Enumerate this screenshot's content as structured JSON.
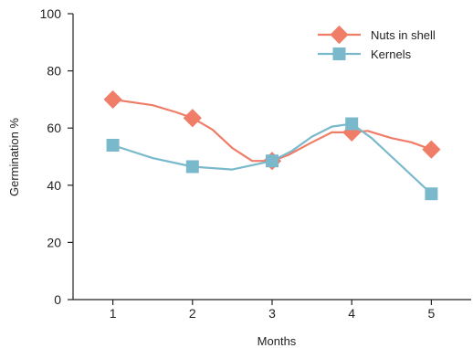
{
  "chart_data": {
    "type": "line",
    "title": "",
    "xlabel": "Months",
    "ylabel": "Germination %",
    "x": [
      1,
      2,
      3,
      4,
      5
    ],
    "x_tick_labels": [
      "1",
      "2",
      "3",
      "4",
      "5"
    ],
    "xlim": [
      0.5,
      5.5
    ],
    "ylim": [
      0,
      100
    ],
    "y_ticks": [
      0,
      20,
      40,
      60,
      80,
      100
    ],
    "y_tick_labels": [
      "0",
      "20",
      "40",
      "60",
      "80",
      "100"
    ],
    "grid": false,
    "legend_position": "top-right",
    "series": [
      {
        "name": "Nuts in shell",
        "color": "#ef7d68",
        "marker": "diamond",
        "values": [
          70,
          63.5,
          48.5,
          58.5,
          52.5
        ],
        "curve": [
          [
            1,
            70
          ],
          [
            1.5,
            68
          ],
          [
            1.8,
            65.5
          ],
          [
            2,
            63.5
          ],
          [
            2.25,
            59.5
          ],
          [
            2.5,
            53
          ],
          [
            2.75,
            48.5
          ],
          [
            3,
            48.5
          ],
          [
            3.2,
            50.5
          ],
          [
            3.5,
            55
          ],
          [
            3.75,
            58.5
          ],
          [
            4,
            58.5
          ],
          [
            4.2,
            59
          ],
          [
            4.5,
            56.5
          ],
          [
            4.75,
            55
          ],
          [
            5,
            52.5
          ]
        ]
      },
      {
        "name": "Kernels",
        "color": "#7ab8cc",
        "marker": "square",
        "values": [
          54,
          46.5,
          48.5,
          61.5,
          37
        ],
        "curve": [
          [
            1,
            54
          ],
          [
            1.5,
            49.5
          ],
          [
            2,
            46.5
          ],
          [
            2.5,
            45.5
          ],
          [
            3,
            48.5
          ],
          [
            3.25,
            52
          ],
          [
            3.5,
            57
          ],
          [
            3.75,
            60.5
          ],
          [
            4,
            61.5
          ],
          [
            4.25,
            56.5
          ],
          [
            4.5,
            50
          ],
          [
            5,
            37
          ]
        ]
      }
    ]
  }
}
